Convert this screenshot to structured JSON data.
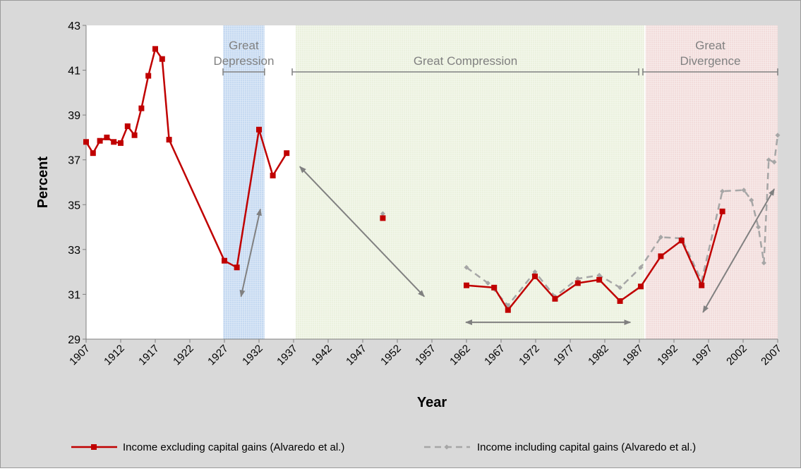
{
  "chart_data": {
    "type": "line",
    "xlabel": "Year",
    "ylabel": "Percent",
    "xlim": [
      1907,
      2007
    ],
    "ylim": [
      29,
      43
    ],
    "y_ticks": [
      "29",
      "31",
      "33",
      "35",
      "37",
      "39",
      "41",
      "43"
    ],
    "x_ticks": [
      "1907",
      "1912",
      "1917",
      "1922",
      "1927",
      "1932",
      "1937",
      "1942",
      "1947",
      "1952",
      "1957",
      "1962",
      "1967",
      "1972",
      "1977",
      "1982",
      "1987",
      "1992",
      "1997",
      "2002",
      "2007"
    ],
    "grid": false,
    "legend_position": "bottom",
    "colors": {
      "excluding": "#c00000",
      "including": "#a6a6a6",
      "arrows": "#808080",
      "depression": "#c5d9f1",
      "compression": "#ebf1de",
      "divergence": "#f2dcdb"
    },
    "periods": [
      {
        "name": "Great Depression",
        "label_lines": [
          "Great",
          "Depression"
        ],
        "start": 1926.8,
        "end": 1932.8,
        "bracket": [
          1926.8,
          1932.8
        ]
      },
      {
        "name": "Great Compression",
        "label_lines": [
          "Great Compression"
        ],
        "start": 1937.3,
        "end": 1987.7,
        "bracket": [
          1936.8,
          1986.9
        ]
      },
      {
        "name": "Great Divergence",
        "label_lines": [
          "Great",
          "Divergence"
        ],
        "start": 1987.9,
        "end": 2007,
        "bracket": [
          1987.5,
          2007
        ]
      }
    ],
    "series": [
      {
        "name": "Income excluding capital gains (Alvaredo et al.)",
        "style": "solid-square",
        "segments": [
          [
            [
              1907,
              37.8
            ],
            [
              1908,
              37.3
            ],
            [
              1909,
              37.85
            ],
            [
              1910,
              38.0
            ],
            [
              1911,
              37.8
            ],
            [
              1912,
              37.75
            ],
            [
              1913,
              38.5
            ],
            [
              1914,
              38.1
            ],
            [
              1915,
              39.3
            ],
            [
              1916,
              40.75
            ],
            [
              1917,
              41.95
            ],
            [
              1918,
              41.5
            ],
            [
              1919,
              37.9
            ],
            [
              1927,
              32.5
            ],
            [
              1928.8,
              32.2
            ],
            [
              1932,
              38.35
            ],
            [
              1934,
              36.3
            ],
            [
              1936,
              37.3
            ]
          ],
          [
            [
              1949.9,
              34.4
            ]
          ],
          [
            [
              1962,
              31.4
            ],
            [
              1966,
              31.3
            ],
            [
              1968,
              30.3
            ],
            [
              1971.9,
              31.8
            ],
            [
              1974.8,
              30.8
            ],
            [
              1978.1,
              31.5
            ],
            [
              1981.2,
              31.65
            ],
            [
              1984.2,
              30.7
            ],
            [
              1987.2,
              31.35
            ],
            [
              1990.1,
              32.7
            ],
            [
              1993.1,
              33.4
            ],
            [
              1996,
              31.4
            ],
            [
              1999,
              34.7
            ]
          ]
        ]
      },
      {
        "name": "Income including capital gains (Alvaredo et al.)",
        "style": "dashed-diamond",
        "segments": [
          [
            [
              1949.9,
              34.6
            ]
          ],
          [
            [
              1962,
              32.2
            ],
            [
              1965.1,
              31.5
            ],
            [
              1968,
              30.5
            ],
            [
              1971.9,
              32.0
            ],
            [
              1974.8,
              30.9
            ],
            [
              1978.1,
              31.7
            ],
            [
              1981.2,
              31.85
            ],
            [
              1984.2,
              31.3
            ],
            [
              1987.2,
              32.2
            ],
            [
              1990.1,
              33.55
            ],
            [
              1993.1,
              33.5
            ],
            [
              1996,
              31.6
            ],
            [
              1999,
              35.6
            ],
            [
              2002.1,
              35.65
            ],
            [
              2003.2,
              35.2
            ],
            [
              2004.2,
              34.0
            ],
            [
              2005,
              32.4
            ],
            [
              2005.7,
              37.0
            ],
            [
              2006.5,
              36.9
            ],
            [
              2007,
              38.1
            ]
          ]
        ]
      }
    ],
    "arrows": [
      {
        "from": [
          1929.4,
          30.9
        ],
        "to": [
          1932.2,
          34.8
        ]
      },
      {
        "from": [
          1937.9,
          36.7
        ],
        "to": [
          1955.9,
          30.9
        ]
      },
      {
        "from": [
          1961.9,
          29.75
        ],
        "to": [
          1985.7,
          29.75
        ]
      },
      {
        "from": [
          1996.2,
          30.2
        ],
        "to": [
          2006.5,
          35.7
        ]
      }
    ]
  }
}
